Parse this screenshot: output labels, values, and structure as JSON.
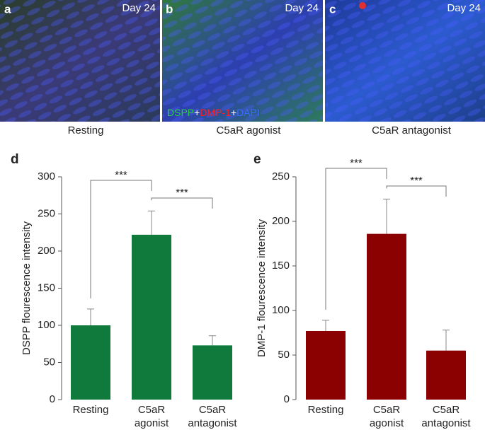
{
  "image_panels": [
    {
      "label": "a",
      "day": "Day 24",
      "caption": "Resting"
    },
    {
      "label": "b",
      "day": "Day 24",
      "caption": "C5aR agonist",
      "stain_legend": [
        "DSPP",
        "+",
        "DMP-1",
        "+",
        "DAPI"
      ]
    },
    {
      "label": "c",
      "day": "Day 24",
      "caption": "C5aR antagonist"
    }
  ],
  "chart_data": [
    {
      "type": "bar",
      "panel_label": "d",
      "y_label": "DSPP flourescence intensity",
      "categories": [
        "Resting",
        "C5aR\nagonist",
        "C5aR\nantagonist"
      ],
      "values": [
        100,
        222,
        73
      ],
      "errors": [
        22,
        32,
        13
      ],
      "color": "#107a3c",
      "ylim": [
        0,
        300
      ],
      "yticks": [
        0,
        50,
        100,
        150,
        200,
        250,
        300
      ],
      "comparisons": [
        {
          "label": "***",
          "between": [
            0,
            1
          ]
        },
        {
          "label": "***",
          "between": [
            1,
            2
          ]
        }
      ]
    },
    {
      "type": "bar",
      "panel_label": "e",
      "y_label": "DMP-1 flourescence intensity",
      "categories": [
        "Resting",
        "C5aR\nagonist",
        "C5aR\nantagonist"
      ],
      "values": [
        77,
        186,
        55
      ],
      "errors": [
        12,
        39,
        23
      ],
      "color": "#8b0000",
      "ylim": [
        0,
        250
      ],
      "yticks": [
        0,
        50,
        100,
        150,
        200,
        250
      ],
      "comparisons": [
        {
          "label": "***",
          "between": [
            0,
            1
          ]
        },
        {
          "label": "***",
          "between": [
            1,
            2
          ]
        }
      ]
    }
  ]
}
